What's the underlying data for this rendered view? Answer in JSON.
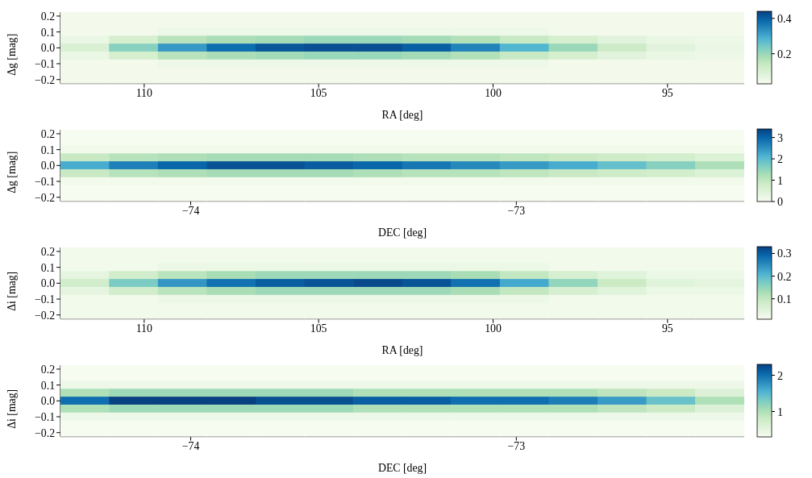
{
  "chart_data": [
    {
      "type": "heatmap",
      "xlabel": "RA [deg]",
      "ylabel": "Δg [mag]",
      "x": [
        111.7,
        110.3,
        108.9,
        107.5,
        106.1,
        104.7,
        103.3,
        101.9,
        100.5,
        99.1,
        97.7,
        96.3,
        94.9,
        93.5
      ],
      "y": [
        0.2,
        0.15,
        0.1,
        0.05,
        0,
        -0.05,
        -0.1,
        -0.15,
        -0.2
      ],
      "cells": [
        [
          0.04,
          0.04,
          0.04,
          0.04,
          0.04,
          0.04,
          0.04,
          0.04,
          0.04,
          0.04,
          0.04,
          0.04,
          0.04,
          0.04
        ],
        [
          0.04,
          0.04,
          0.04,
          0.04,
          0.04,
          0.04,
          0.04,
          0.04,
          0.04,
          0.04,
          0.04,
          0.04,
          0.04,
          0.04
        ],
        [
          0.04,
          0.04,
          0.05,
          0.05,
          0.05,
          0.05,
          0.05,
          0.05,
          0.05,
          0.05,
          0.04,
          0.04,
          0.04,
          0.04
        ],
        [
          0.06,
          0.11,
          0.16,
          0.18,
          0.19,
          0.2,
          0.2,
          0.19,
          0.17,
          0.14,
          0.11,
          0.08,
          0.06,
          0.05
        ],
        [
          0.1,
          0.22,
          0.32,
          0.38,
          0.41,
          0.42,
          0.42,
          0.4,
          0.35,
          0.28,
          0.2,
          0.13,
          0.08,
          0.06
        ],
        [
          0.06,
          0.11,
          0.16,
          0.18,
          0.19,
          0.2,
          0.2,
          0.19,
          0.17,
          0.14,
          0.11,
          0.08,
          0.06,
          0.05
        ],
        [
          0.04,
          0.04,
          0.05,
          0.05,
          0.05,
          0.05,
          0.05,
          0.05,
          0.05,
          0.05,
          0.04,
          0.04,
          0.04,
          0.04
        ],
        [
          0.04,
          0.04,
          0.04,
          0.04,
          0.04,
          0.04,
          0.04,
          0.04,
          0.04,
          0.04,
          0.04,
          0.04,
          0.04,
          0.04
        ],
        [
          0.04,
          0.04,
          0.04,
          0.04,
          0.04,
          0.04,
          0.04,
          0.04,
          0.04,
          0.04,
          0.04,
          0.04,
          0.04,
          0.04
        ]
      ],
      "xlim": [
        112.4,
        92.8
      ],
      "xticks": [
        110,
        105,
        100,
        95
      ],
      "ylim": [
        -0.225,
        0.225
      ],
      "yticks": [
        {
          "value": -0.2,
          "label": "−0.2"
        },
        {
          "value": -0.1,
          "label": "−0.1"
        },
        {
          "value": 0,
          "label": "0.0"
        },
        {
          "value": 0.1,
          "label": "0.1"
        },
        {
          "value": 0.2,
          "label": "0.2"
        }
      ],
      "clim": [
        0.03,
        0.44
      ],
      "cticks": [
        0.2,
        0.4
      ]
    },
    {
      "type": "heatmap",
      "xlabel": "DEC [deg]",
      "ylabel": "Δg [mag]",
      "x": [
        -74.325,
        -74.175,
        -74.025,
        -73.875,
        -73.725,
        -73.575,
        -73.425,
        -73.275,
        -73.125,
        -72.975,
        -72.825,
        -72.675,
        -72.525,
        -72.375
      ],
      "y": [
        0.2,
        0.15,
        0.1,
        0.05,
        0,
        -0.05,
        -0.1,
        -0.15,
        -0.2
      ],
      "cells": [
        [
          0,
          0,
          0,
          0,
          0,
          0,
          0,
          0,
          0,
          0,
          0,
          0,
          0,
          0
        ],
        [
          0,
          0,
          0,
          0,
          0,
          0,
          0,
          0,
          0,
          0,
          0,
          0,
          0,
          0
        ],
        [
          0.1,
          0.1,
          0.1,
          0.1,
          0.1,
          0.1,
          0.1,
          0.1,
          0.1,
          0.1,
          0.1,
          0.1,
          0.1,
          0.1
        ],
        [
          0.9,
          1.1,
          1.2,
          1.3,
          1.3,
          1.3,
          1.2,
          1.1,
          1.1,
          1.0,
          0.9,
          0.8,
          0.7,
          0.5
        ],
        [
          2.2,
          2.7,
          3.0,
          3.2,
          3.2,
          3.1,
          3.0,
          2.8,
          2.6,
          2.4,
          2.2,
          1.9,
          1.6,
          1.2
        ],
        [
          0.9,
          1.1,
          1.2,
          1.3,
          1.3,
          1.3,
          1.2,
          1.1,
          1.1,
          1.0,
          0.9,
          0.8,
          0.7,
          0.5
        ],
        [
          0.1,
          0.1,
          0.1,
          0.1,
          0.1,
          0.1,
          0.1,
          0.1,
          0.1,
          0.1,
          0.1,
          0.1,
          0.1,
          0.1
        ],
        [
          0,
          0,
          0,
          0,
          0,
          0,
          0,
          0,
          0,
          0,
          0,
          0,
          0,
          0
        ],
        [
          0,
          0,
          0,
          0,
          0,
          0,
          0,
          0,
          0,
          0,
          0,
          0,
          0,
          0
        ]
      ],
      "xlim": [
        -74.4,
        -72.3
      ],
      "xticks": [
        -74,
        -73
      ],
      "ylim": [
        -0.225,
        0.225
      ],
      "yticks": [
        {
          "value": -0.2,
          "label": "−0.2"
        },
        {
          "value": -0.1,
          "label": "−0.1"
        },
        {
          "value": 0,
          "label": "0.0"
        },
        {
          "value": 0.1,
          "label": "0.1"
        },
        {
          "value": 0.2,
          "label": "0.2"
        }
      ],
      "clim": [
        0,
        3.4
      ],
      "cticks": [
        0,
        1,
        2,
        3
      ]
    },
    {
      "type": "heatmap",
      "xlabel": "RA [deg]",
      "ylabel": "Δi [mag]",
      "x": [
        111.7,
        110.3,
        108.9,
        107.5,
        106.1,
        104.7,
        103.3,
        101.9,
        100.5,
        99.1,
        97.7,
        96.3,
        94.9,
        93.5
      ],
      "y": [
        0.2,
        0.15,
        0.1,
        0.05,
        0,
        -0.05,
        -0.1,
        -0.15,
        -0.2
      ],
      "cells": [
        [
          0.02,
          0.02,
          0.02,
          0.02,
          0.02,
          0.02,
          0.02,
          0.02,
          0.02,
          0.02,
          0.02,
          0.02,
          0.02,
          0.02
        ],
        [
          0.02,
          0.02,
          0.02,
          0.02,
          0.02,
          0.02,
          0.02,
          0.02,
          0.02,
          0.02,
          0.02,
          0.02,
          0.02,
          0.02
        ],
        [
          0.02,
          0.02,
          0.03,
          0.03,
          0.03,
          0.03,
          0.03,
          0.03,
          0.03,
          0.03,
          0.02,
          0.02,
          0.02,
          0.02
        ],
        [
          0.04,
          0.08,
          0.11,
          0.13,
          0.14,
          0.14,
          0.14,
          0.14,
          0.13,
          0.1,
          0.07,
          0.05,
          0.03,
          0.03
        ],
        [
          0.08,
          0.17,
          0.24,
          0.28,
          0.3,
          0.31,
          0.32,
          0.31,
          0.28,
          0.22,
          0.15,
          0.09,
          0.05,
          0.04
        ],
        [
          0.04,
          0.08,
          0.11,
          0.13,
          0.14,
          0.14,
          0.14,
          0.14,
          0.13,
          0.1,
          0.07,
          0.05,
          0.03,
          0.03
        ],
        [
          0.02,
          0.02,
          0.03,
          0.03,
          0.03,
          0.03,
          0.03,
          0.03,
          0.03,
          0.03,
          0.02,
          0.02,
          0.02,
          0.02
        ],
        [
          0.02,
          0.02,
          0.02,
          0.02,
          0.02,
          0.02,
          0.02,
          0.02,
          0.02,
          0.02,
          0.02,
          0.02,
          0.02,
          0.02
        ],
        [
          0.02,
          0.02,
          0.02,
          0.02,
          0.02,
          0.02,
          0.02,
          0.02,
          0.02,
          0.02,
          0.02,
          0.02,
          0.02,
          0.02
        ]
      ],
      "xlim": [
        112.4,
        92.8
      ],
      "xticks": [
        110,
        105,
        100,
        95
      ],
      "ylim": [
        -0.225,
        0.225
      ],
      "yticks": [
        {
          "value": -0.2,
          "label": "−0.2"
        },
        {
          "value": -0.1,
          "label": "−0.1"
        },
        {
          "value": 0,
          "label": "0.0"
        },
        {
          "value": 0.1,
          "label": "0.1"
        },
        {
          "value": 0.2,
          "label": "0.2"
        }
      ],
      "clim": [
        0.01,
        0.33
      ],
      "cticks": [
        0.1,
        0.2,
        0.3
      ]
    },
    {
      "type": "heatmap",
      "xlabel": "DEC [deg]",
      "ylabel": "Δi [mag]",
      "x": [
        -74.325,
        -74.175,
        -74.025,
        -73.875,
        -73.725,
        -73.575,
        -73.425,
        -73.275,
        -73.125,
        -72.975,
        -72.825,
        -72.675,
        -72.525,
        -72.375
      ],
      "y": [
        0.2,
        0.15,
        0.1,
        0.05,
        0,
        -0.05,
        -0.1,
        -0.15,
        -0.2
      ],
      "cells": [
        [
          0.3,
          0.3,
          0.3,
          0.3,
          0.3,
          0.3,
          0.3,
          0.3,
          0.3,
          0.3,
          0.3,
          0.3,
          0.3,
          0.3
        ],
        [
          0.3,
          0.3,
          0.3,
          0.3,
          0.3,
          0.3,
          0.3,
          0.3,
          0.3,
          0.3,
          0.3,
          0.3,
          0.3,
          0.3
        ],
        [
          0.4,
          0.4,
          0.4,
          0.4,
          0.4,
          0.4,
          0.4,
          0.4,
          0.4,
          0.4,
          0.4,
          0.4,
          0.4,
          0.4
        ],
        [
          1.0,
          1.1,
          1.1,
          1.1,
          1.1,
          1.1,
          1.0,
          1.0,
          1.0,
          1.0,
          1.0,
          0.9,
          0.8,
          0.6
        ],
        [
          2.0,
          2.3,
          2.3,
          2.3,
          2.2,
          2.2,
          2.1,
          2.1,
          2.0,
          2.0,
          1.9,
          1.7,
          1.4,
          1.0
        ],
        [
          1.0,
          1.1,
          1.1,
          1.1,
          1.1,
          1.1,
          1.0,
          1.0,
          1.0,
          1.0,
          1.0,
          0.9,
          0.8,
          0.6
        ],
        [
          0.4,
          0.4,
          0.4,
          0.4,
          0.4,
          0.4,
          0.4,
          0.4,
          0.4,
          0.4,
          0.4,
          0.4,
          0.4,
          0.4
        ],
        [
          0.3,
          0.3,
          0.3,
          0.3,
          0.3,
          0.3,
          0.3,
          0.3,
          0.3,
          0.3,
          0.3,
          0.3,
          0.3,
          0.3
        ],
        [
          0.3,
          0.3,
          0.3,
          0.3,
          0.3,
          0.3,
          0.3,
          0.3,
          0.3,
          0.3,
          0.3,
          0.3,
          0.3,
          0.3
        ]
      ],
      "xlim": [
        -74.4,
        -72.3
      ],
      "xticks": [
        -74,
        -73
      ],
      "ylim": [
        -0.225,
        0.225
      ],
      "yticks": [
        {
          "value": -0.2,
          "label": "−0.2"
        },
        {
          "value": -0.1,
          "label": "−0.1"
        },
        {
          "value": 0,
          "label": "0.0"
        },
        {
          "value": 0.1,
          "label": "0.1"
        },
        {
          "value": 0.2,
          "label": "0.2"
        }
      ],
      "clim": [
        0.3,
        2.3
      ],
      "cticks": [
        1,
        2
      ]
    }
  ]
}
